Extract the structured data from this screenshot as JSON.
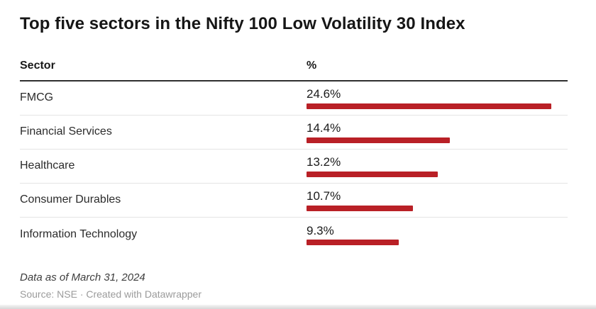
{
  "chart_data": {
    "type": "bar",
    "title": "Top five sectors in the Nifty 100 Low Volatility 30 Index",
    "columns": {
      "sector": "Sector",
      "percent": "%"
    },
    "categories": [
      "FMCG",
      "Financial Services",
      "Healthcare",
      "Consumer Durables",
      "Information Technology"
    ],
    "values": [
      24.6,
      14.4,
      13.2,
      10.7,
      9.3
    ],
    "value_labels": [
      "24.6%",
      "14.4%",
      "13.2%",
      "10.7%",
      "9.3%"
    ],
    "xlim": [
      0,
      24.6
    ],
    "bar_color": "#b92026",
    "legend": "none",
    "grid": false,
    "note": "Data as of March 31, 2024",
    "source": "Source: NSE · Created with Datawrapper"
  }
}
